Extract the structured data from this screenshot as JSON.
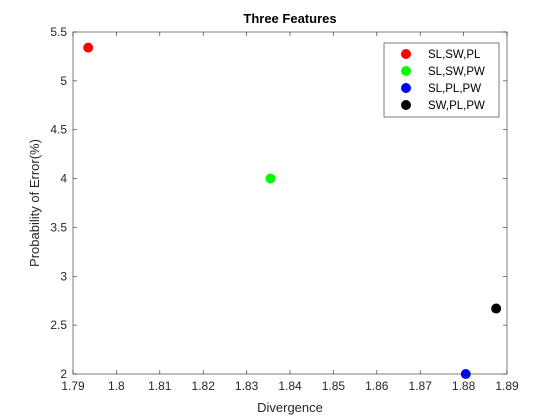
{
  "chart_data": {
    "type": "scatter",
    "title": "Three Features",
    "xlabel": "Divergence",
    "ylabel": "Probability of Error(%)",
    "xlim": [
      1.79,
      1.89
    ],
    "ylim": [
      2,
      5.5
    ],
    "xticks": [
      "1.79",
      "1.8",
      "1.81",
      "1.82",
      "1.83",
      "1.84",
      "1.85",
      "1.86",
      "1.87",
      "1.88",
      "1.89"
    ],
    "yticks": [
      "2",
      "2.5",
      "3",
      "3.5",
      "4",
      "4.5",
      "5",
      "5.5"
    ],
    "grid": false,
    "legend_position": "top-right",
    "series": [
      {
        "name": "SL,SW,PL",
        "color": "#ff0000",
        "x": [
          1.7935
        ],
        "y": [
          5.34
        ]
      },
      {
        "name": "SL,SW,PW",
        "color": "#00ff00",
        "x": [
          1.8355
        ],
        "y": [
          4.0
        ]
      },
      {
        "name": "SL,PL,PW",
        "color": "#0000ff",
        "x": [
          1.8805
        ],
        "y": [
          2.0
        ]
      },
      {
        "name": "SW,PL,PW",
        "color": "#000000",
        "x": [
          1.8875
        ],
        "y": [
          2.67
        ]
      }
    ]
  }
}
